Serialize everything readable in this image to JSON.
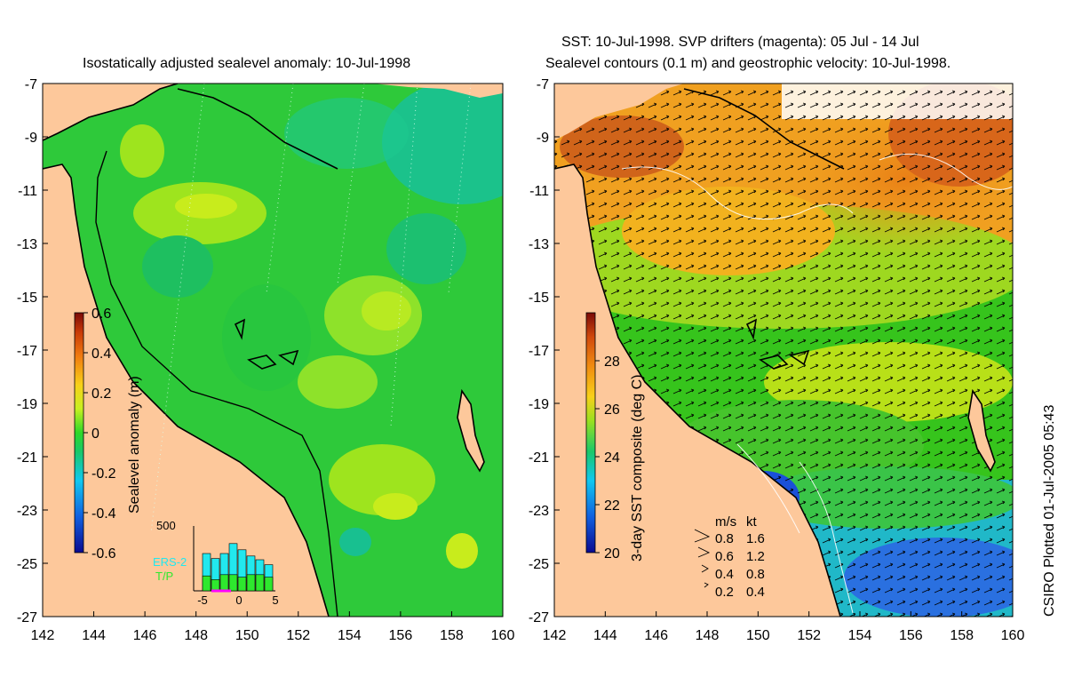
{
  "left_panel": {
    "title": "Isostatically adjusted sealevel anomaly: 10-Jul-1998",
    "colorbar": {
      "label": "Sealevel anomaly (m)",
      "ticks": [
        "0.6",
        "0.4",
        "0.2",
        "0",
        "-0.2",
        "-0.4",
        "-0.6"
      ],
      "min": -0.6,
      "max": 0.6
    },
    "histogram": {
      "ymax_label": "500",
      "x_ticks": [
        "-5",
        "0",
        "5"
      ],
      "series": [
        {
          "name": "ERS-2",
          "color": "#22e8ee"
        },
        {
          "name": "T/P",
          "color": "#2ee82e"
        }
      ],
      "ers2_values": [
        300,
        260,
        300,
        380,
        330,
        280,
        250,
        210
      ],
      "tp_values": [
        120,
        90,
        130,
        130,
        110,
        130,
        130,
        110
      ]
    }
  },
  "right_panel": {
    "title_line1": "SST: 10-Jul-1998. SVP drifters (magenta): 05 Jul - 14 Jul",
    "title_line2": "Sealevel contours (0.1 m) and geostrophic velocity: 10-Jul-1998.",
    "colorbar": {
      "label": "3-day SST composite (deg C)",
      "ticks": [
        "28",
        "26",
        "24",
        "22",
        "20"
      ],
      "min": 20,
      "max": 30
    },
    "velocity_legend": {
      "header_ms": "m/s",
      "header_kt": "kt",
      "rows": [
        {
          "ms": "0.8",
          "kt": "1.6"
        },
        {
          "ms": "0.6",
          "kt": "1.2"
        },
        {
          "ms": "0.4",
          "kt": "0.8"
        },
        {
          "ms": "0.2",
          "kt": "0.4"
        }
      ]
    }
  },
  "axes": {
    "lat_ticks": [
      "-7",
      "-9",
      "-11",
      "-13",
      "-15",
      "-17",
      "-19",
      "-21",
      "-23",
      "-25",
      "-27"
    ],
    "lon_ticks": [
      "142",
      "144",
      "146",
      "148",
      "150",
      "152",
      "154",
      "156",
      "158",
      "160"
    ]
  },
  "credit": "CSIRO Plotted 01-Jul-2005 05:43",
  "colors": {
    "land": "#fdc89b",
    "sea_base": "#2ec93a",
    "sst_warm": "#f09a20",
    "sst_mid": "#36c41c",
    "sst_cool": "#18b8d4"
  }
}
